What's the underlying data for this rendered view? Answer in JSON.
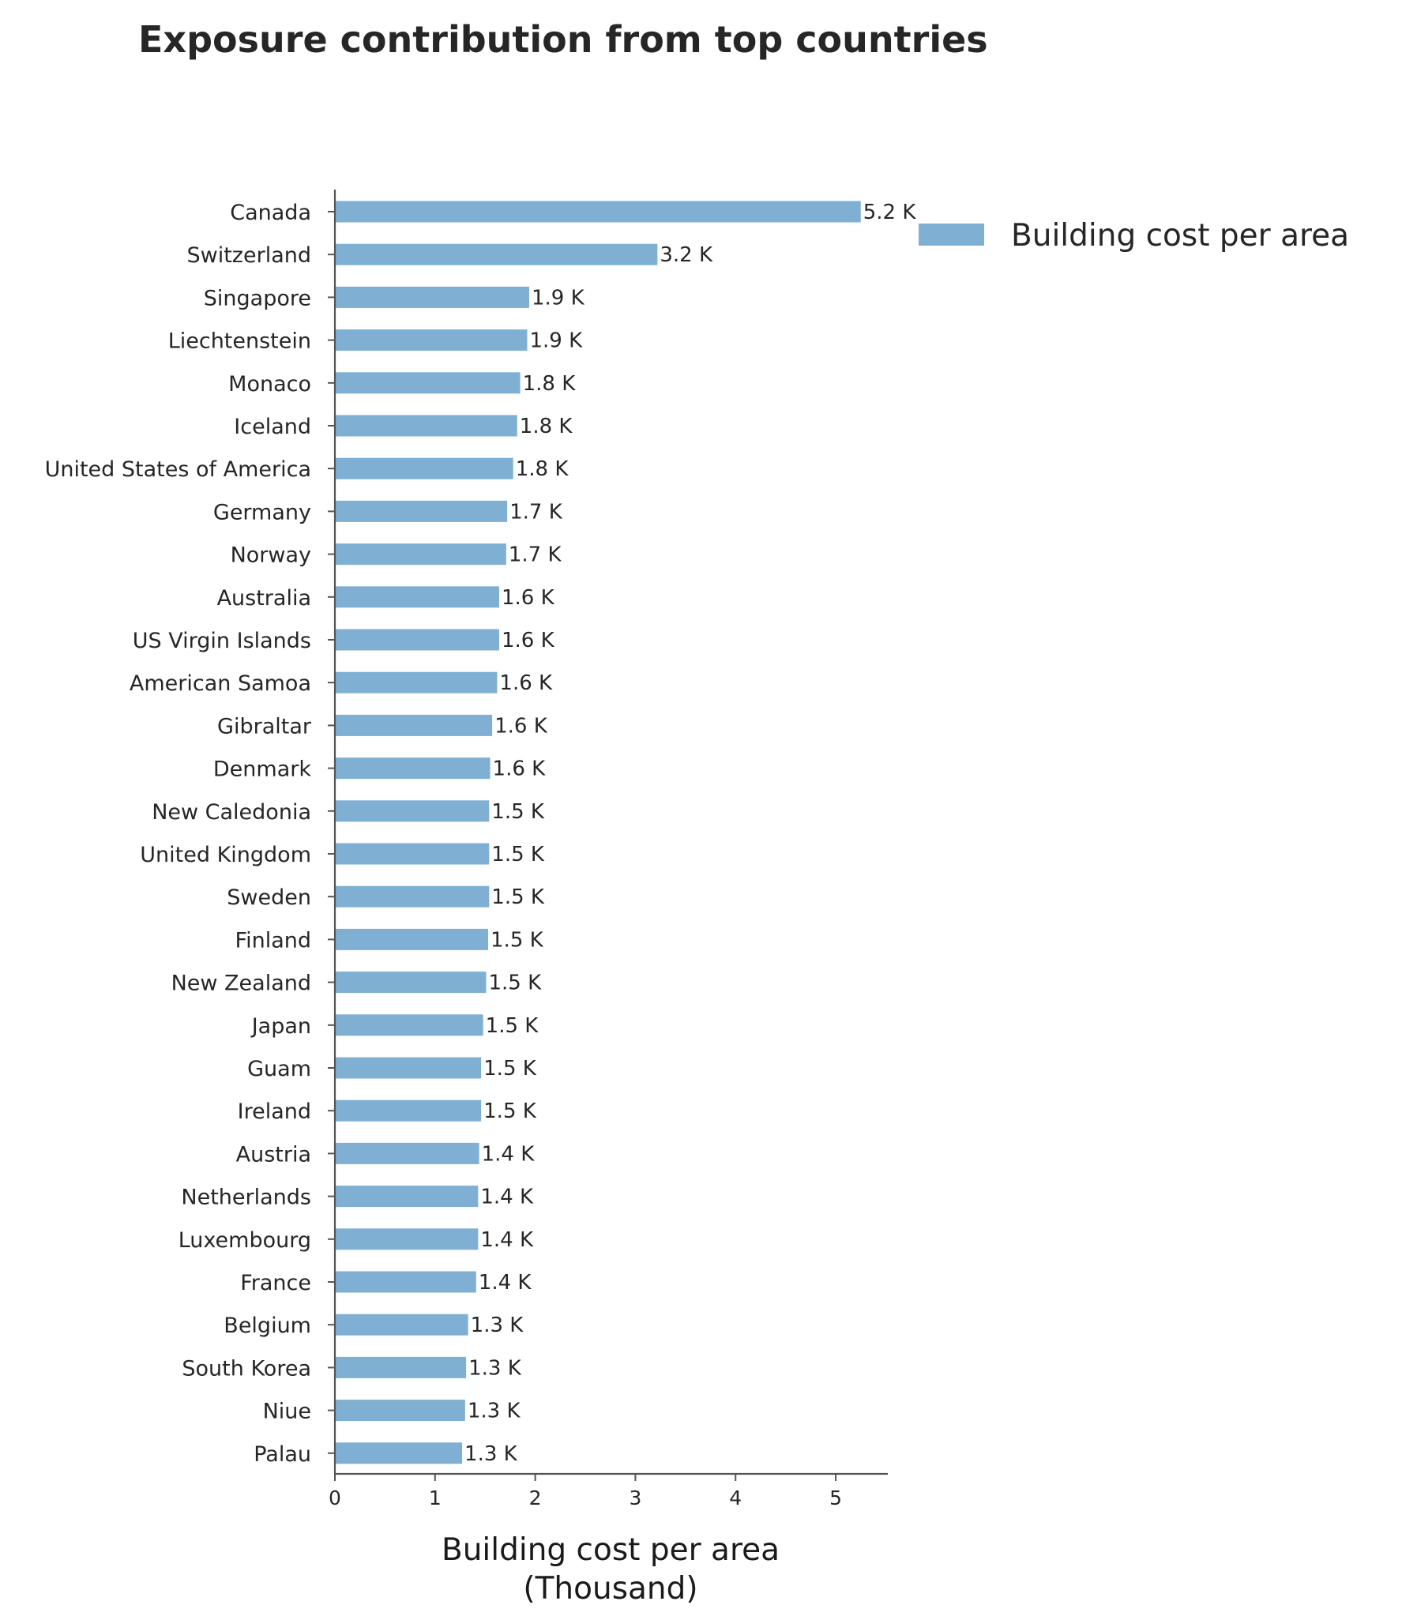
{
  "chart_data": {
    "type": "bar",
    "orientation": "horizontal",
    "title": "Exposure contribution from top countries",
    "xlabel_lines": [
      "Building cost per area",
      "(Thousand)"
    ],
    "ylabel": "",
    "categories": [
      "Canada",
      "Switzerland",
      "Singapore",
      "Liechtenstein",
      "Monaco",
      "Iceland",
      "United States of America",
      "Germany",
      "Norway",
      "Australia",
      "US Virgin Islands",
      "American Samoa",
      "Gibraltar",
      "Denmark",
      "New Caledonia",
      "United Kingdom",
      "Sweden",
      "Finland",
      "New Zealand",
      "Japan",
      "Guam",
      "Ireland",
      "Austria",
      "Netherlands",
      "Luxembourg",
      "France",
      "Belgium",
      "South Korea",
      "Niue",
      "Palau"
    ],
    "series": [
      {
        "name": "Building cost per area",
        "color": "#7fb0d3",
        "values": [
          5.25,
          3.22,
          1.94,
          1.92,
          1.85,
          1.82,
          1.78,
          1.72,
          1.71,
          1.64,
          1.64,
          1.62,
          1.57,
          1.55,
          1.54,
          1.54,
          1.54,
          1.53,
          1.51,
          1.48,
          1.46,
          1.46,
          1.44,
          1.43,
          1.43,
          1.41,
          1.33,
          1.31,
          1.3,
          1.27
        ],
        "value_labels": [
          "5.2 K",
          "3.2 K",
          "1.9 K",
          "1.9 K",
          "1.8 K",
          "1.8 K",
          "1.8 K",
          "1.7 K",
          "1.7 K",
          "1.6 K",
          "1.6 K",
          "1.6 K",
          "1.6 K",
          "1.6 K",
          "1.5 K",
          "1.5 K",
          "1.5 K",
          "1.5 K",
          "1.5 K",
          "1.5 K",
          "1.5 K",
          "1.5 K",
          "1.4 K",
          "1.4 K",
          "1.4 K",
          "1.4 K",
          "1.3 K",
          "1.3 K",
          "1.3 K",
          "1.3 K"
        ]
      }
    ],
    "xlim": [
      0,
      5.52
    ],
    "xticks": [
      0,
      1,
      2,
      3,
      4,
      5
    ],
    "xtick_labels": [
      "0",
      "1",
      "2",
      "3",
      "4",
      "5"
    ],
    "grid": false,
    "legend_position": "top-right",
    "axis_color": "#555555"
  }
}
